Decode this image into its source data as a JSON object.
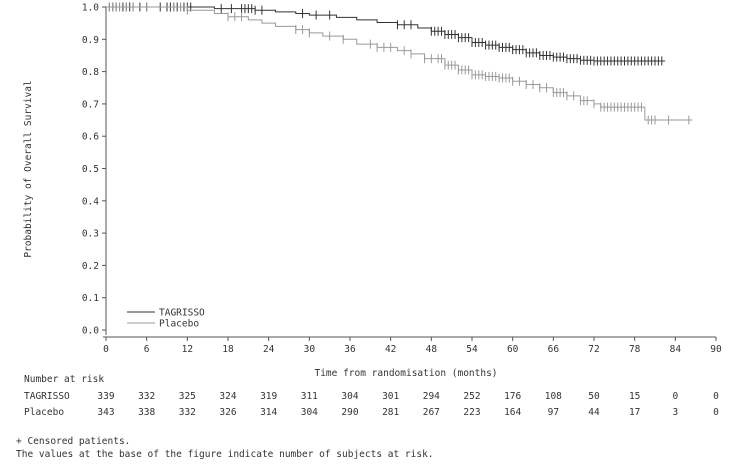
{
  "chart_data": {
    "type": "line",
    "title": "",
    "xlabel": "Time from randomisation (months)",
    "ylabel": "Probability of Overall Survival",
    "xlim": [
      0,
      90
    ],
    "ylim": [
      0,
      1
    ],
    "xticks": [
      0,
      6,
      12,
      18,
      24,
      30,
      36,
      42,
      48,
      54,
      60,
      66,
      72,
      78,
      84,
      90
    ],
    "yticks": [
      0.0,
      0.1,
      0.2,
      0.3,
      0.4,
      0.5,
      0.6,
      0.7,
      0.8,
      0.9,
      1.0
    ],
    "legend_position": "bottom-left",
    "series": [
      {
        "name": "TAGRISSO",
        "color": "#333333",
        "steps": [
          [
            0,
            1.0
          ],
          [
            16,
            0.995
          ],
          [
            22,
            0.99
          ],
          [
            25,
            0.985
          ],
          [
            28,
            0.98
          ],
          [
            30,
            0.975
          ],
          [
            34,
            0.968
          ],
          [
            37,
            0.96
          ],
          [
            40,
            0.952
          ],
          [
            43,
            0.945
          ],
          [
            46,
            0.935
          ],
          [
            48,
            0.925
          ],
          [
            50,
            0.915
          ],
          [
            52,
            0.905
          ],
          [
            54,
            0.89
          ],
          [
            56,
            0.882
          ],
          [
            58,
            0.875
          ],
          [
            60,
            0.868
          ],
          [
            62,
            0.858
          ],
          [
            64,
            0.85
          ],
          [
            66,
            0.845
          ],
          [
            68,
            0.84
          ],
          [
            70,
            0.835
          ],
          [
            72,
            0.833
          ],
          [
            82.5,
            0.833
          ]
        ],
        "censored": [
          0.5,
          1,
          1.5,
          2,
          2.5,
          3,
          3.5,
          4,
          5,
          6,
          8,
          9,
          9.5,
          10,
          10.5,
          11,
          11.5,
          12,
          12.5,
          17,
          18.5,
          20,
          20.5,
          21,
          21.5,
          22,
          23,
          29,
          31,
          33,
          43,
          44,
          45,
          48,
          48.5,
          49,
          49.5,
          50,
          50.5,
          51,
          51.5,
          52,
          52.5,
          53,
          53.5,
          54,
          54.5,
          55,
          55.5,
          56,
          56.5,
          57,
          57.5,
          58,
          58.5,
          59,
          59.5,
          60,
          60.5,
          61,
          61.5,
          62,
          62.5,
          63,
          63.5,
          64,
          64.5,
          65,
          65.5,
          66,
          66.5,
          67,
          67.5,
          68,
          68.5,
          69,
          69.5,
          70,
          70.5,
          71,
          71.5,
          72,
          72.5,
          73,
          73.5,
          74,
          74.5,
          75,
          75.5,
          76,
          76.5,
          77,
          77.5,
          78,
          78.5,
          79,
          79.5,
          80,
          80.5,
          81,
          81.5,
          82
        ]
      },
      {
        "name": "Placebo",
        "color": "#9a9a9a",
        "steps": [
          [
            0,
            1.0
          ],
          [
            12,
            0.99
          ],
          [
            16,
            0.98
          ],
          [
            18,
            0.97
          ],
          [
            21,
            0.96
          ],
          [
            23,
            0.95
          ],
          [
            25,
            0.94
          ],
          [
            28,
            0.93
          ],
          [
            30,
            0.92
          ],
          [
            32,
            0.91
          ],
          [
            35,
            0.9
          ],
          [
            37,
            0.885
          ],
          [
            40,
            0.875
          ],
          [
            43,
            0.865
          ],
          [
            45,
            0.855
          ],
          [
            47,
            0.84
          ],
          [
            50,
            0.82
          ],
          [
            52,
            0.805
          ],
          [
            54,
            0.79
          ],
          [
            56,
            0.785
          ],
          [
            58,
            0.78
          ],
          [
            60,
            0.77
          ],
          [
            62,
            0.76
          ],
          [
            64,
            0.75
          ],
          [
            66,
            0.735
          ],
          [
            68,
            0.725
          ],
          [
            70,
            0.71
          ],
          [
            72,
            0.7
          ],
          [
            73,
            0.69
          ],
          [
            79,
            0.69
          ],
          [
            79.5,
            0.65
          ],
          [
            86.5,
            0.65
          ]
        ],
        "censored": [
          0.5,
          1,
          1.5,
          2,
          3,
          4,
          6,
          10,
          11,
          12,
          18,
          19,
          20,
          28,
          29,
          30,
          33,
          35,
          39,
          40,
          41,
          42,
          44,
          45,
          47,
          48,
          49,
          49.5,
          50,
          50.5,
          51,
          51.5,
          52,
          52.5,
          53,
          53.5,
          54,
          54.5,
          55,
          55.5,
          56,
          56.5,
          57,
          57.5,
          58,
          58.5,
          59,
          59.5,
          60,
          61,
          62,
          63,
          64,
          65,
          66,
          66.5,
          67,
          67.5,
          68,
          69,
          70,
          70.5,
          71,
          72,
          73,
          73.5,
          74,
          74.5,
          75,
          75.5,
          76,
          76.5,
          77,
          77.5,
          78,
          78.5,
          79,
          80,
          80.5,
          81,
          83,
          86
        ]
      }
    ]
  },
  "risk_table": {
    "heading": "Number at risk",
    "rows": [
      {
        "label": "TAGRISSO",
        "values": [
          "339",
          "332",
          "325",
          "324",
          "319",
          "311",
          "304",
          "301",
          "294",
          "252",
          "176",
          "108",
          "50",
          "15",
          "0",
          "0"
        ]
      },
      {
        "label": "Placebo",
        "values": [
          "343",
          "338",
          "332",
          "326",
          "314",
          "304",
          "290",
          "281",
          "267",
          "223",
          "164",
          "97",
          "44",
          "17",
          "3",
          "0"
        ]
      }
    ]
  },
  "footnotes": [
    "+ Censored patients.",
    "The values at the base of the figure indicate number of subjects at risk."
  ]
}
